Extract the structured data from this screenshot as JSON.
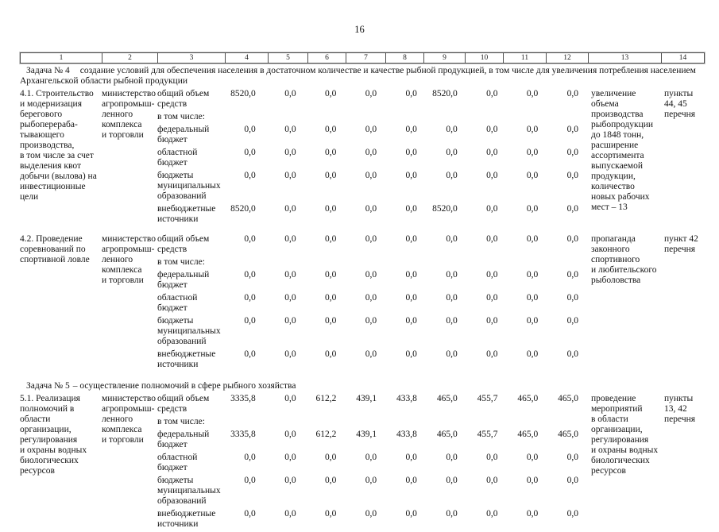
{
  "page_number": "16",
  "header_columns": [
    "1",
    "2",
    "3",
    "4",
    "5",
    "6",
    "7",
    "8",
    "9",
    "10",
    "11",
    "12",
    "13",
    "14"
  ],
  "tasks": {
    "task4": {
      "label": "Задача № 4",
      "text": "создание условий для обеспечения населения в достаточном количестве и качестве рыбной продукцией, в том числе для увеличения потребления населением Архангельской области рыбной продукции"
    },
    "task5": {
      "label": "Задача № 5",
      "text": "– осуществление полномочий в сфере рыбного хозяйства"
    }
  },
  "rows": [
    {
      "id": "4.1",
      "activity": "4.1. Строительство\nи модернизация\nберегового\nрыбоперераба-\nтывающего\nпроизводства,\nв том числе за счет\nвыделения квот\nдобычи (вылова) на\nинвестиционные цели",
      "executor": "министерство\nагропромыш-\nленного\nкомплекса\nи торговли",
      "funding": [
        {
          "label": "общий объем\nсредств",
          "values": [
            "8520,0",
            "0,0",
            "0,0",
            "0,0",
            "0,0",
            "8520,0",
            "0,0",
            "0,0",
            "0,0"
          ]
        },
        {
          "label": "в том числе:",
          "values": []
        },
        {
          "label": "федеральный\nбюджет",
          "values": [
            "0,0",
            "0,0",
            "0,0",
            "0,0",
            "0,0",
            "0,0",
            "0,0",
            "0,0",
            "0,0"
          ]
        },
        {
          "label": "областной бюджет",
          "values": [
            "0,0",
            "0,0",
            "0,0",
            "0,0",
            "0,0",
            "0,0",
            "0,0",
            "0,0",
            "0,0"
          ]
        },
        {
          "label": "бюджеты\nмуниципальных\nобразований",
          "values": [
            "0,0",
            "0,0",
            "0,0",
            "0,0",
            "0,0",
            "0,0",
            "0,0",
            "0,0",
            "0,0"
          ]
        },
        {
          "label": "внебюджетные\nисточники",
          "values": [
            "8520,0",
            "0,0",
            "0,0",
            "0,0",
            "0,0",
            "8520,0",
            "0,0",
            "0,0",
            "0,0"
          ]
        }
      ],
      "result": "увеличение\nобъема\nпроизводства\nрыбопродукции\nдо 1848 тонн,\nрасширение\nассортимента\nвыпускаемой\nпродукции,\nколичество\nновых рабочих\nмест – 13",
      "reference": "пункты\n44, 45\nперечня"
    },
    {
      "id": "4.2",
      "activity": "4.2. Проведение\nсоревнований по\nспортивной ловле",
      "executor": "министерство\nагропромыш-\nленного\nкомплекса\nи торговли",
      "funding": [
        {
          "label": "общий объем\nсредств",
          "values": [
            "0,0",
            "0,0",
            "0,0",
            "0,0",
            "0,0",
            "0,0",
            "0,0",
            "0,0",
            "0,0"
          ]
        },
        {
          "label": "в том числе:",
          "values": []
        },
        {
          "label": "федеральный\nбюджет",
          "values": [
            "0,0",
            "0,0",
            "0,0",
            "0,0",
            "0,0",
            "0,0",
            "0,0",
            "0,0",
            "0,0"
          ]
        },
        {
          "label": "областной бюджет",
          "values": [
            "0,0",
            "0,0",
            "0,0",
            "0,0",
            "0,0",
            "0,0",
            "0,0",
            "0,0",
            "0,0"
          ]
        },
        {
          "label": "бюджеты\nмуниципальных\nобразований",
          "values": [
            "0,0",
            "0,0",
            "0,0",
            "0,0",
            "0,0",
            "0,0",
            "0,0",
            "0,0",
            "0,0"
          ]
        },
        {
          "label": "внебюджетные\nисточники",
          "values": [
            "0,0",
            "0,0",
            "0,0",
            "0,0",
            "0,0",
            "0,0",
            "0,0",
            "0,0",
            "0,0"
          ]
        }
      ],
      "result": "пропаганда\nзаконного\nспортивного\nи любительского\nрыболовства",
      "reference": "пункт 42\nперечня"
    },
    {
      "id": "5.1",
      "activity": "5.1. Реализация\nполномочий в области\nорганизации,\nрегулирования\nи охраны водных\nбиологических\nресурсов",
      "executor": "министерство\nагропромыш-\nленного\nкомплекса\nи торговли",
      "funding": [
        {
          "label": "общий объем\nсредств",
          "values": [
            "3335,8",
            "0,0",
            "612,2",
            "439,1",
            "433,8",
            "465,0",
            "455,7",
            "465,0",
            "465,0"
          ]
        },
        {
          "label": "в том числе:",
          "values": []
        },
        {
          "label": "федеральный\nбюджет",
          "values": [
            "3335,8",
            "0,0",
            "612,2",
            "439,1",
            "433,8",
            "465,0",
            "455,7",
            "465,0",
            "465,0"
          ]
        },
        {
          "label": "областной\nбюджет",
          "values": [
            "0,0",
            "0,0",
            "0,0",
            "0,0",
            "0,0",
            "0,0",
            "0,0",
            "0,0",
            "0,0"
          ]
        },
        {
          "label": "бюджеты\nмуниципальных\nобразований",
          "values": [
            "0,0",
            "0,0",
            "0,0",
            "0,0",
            "0,0",
            "0,0",
            "0,0",
            "0,0",
            "0,0"
          ]
        },
        {
          "label": "внебюджетные\nисточники",
          "values": [
            "0,0",
            "0,0",
            "0,0",
            "0,0",
            "0,0",
            "0,0",
            "0,0",
            "0,0",
            "0,0"
          ]
        }
      ],
      "result": "проведение\nмероприятий\nв области\nорганизации,\nрегулирования\nи охраны водных\nбиологических\nресурсов",
      "reference": "пункты\n13, 42\nперечня"
    }
  ]
}
